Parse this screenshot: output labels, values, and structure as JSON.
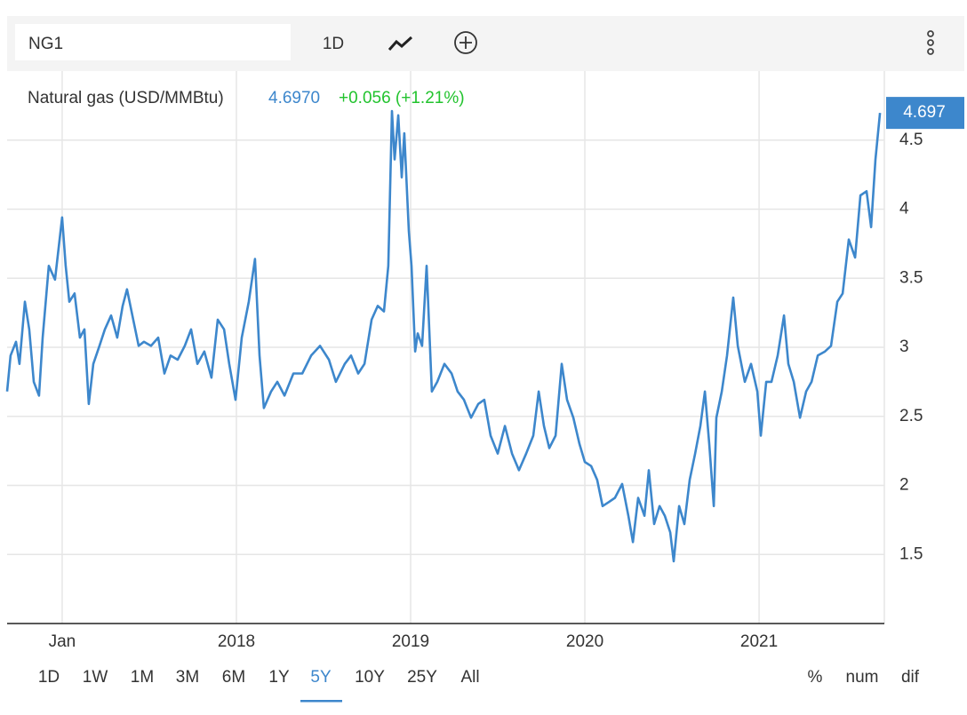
{
  "toolbar": {
    "symbol": "NG1",
    "interval": "1D"
  },
  "quote": {
    "price": "4.6970",
    "change": "+0.056 (+1.21%)"
  },
  "chart_data": {
    "type": "line",
    "x": [
      2016.684,
      2016.704,
      2016.735,
      2016.755,
      2016.786,
      2016.811,
      2016.837,
      2016.867,
      2016.888,
      2016.923,
      2016.959,
      2017.0,
      2017.02,
      2017.041,
      2017.071,
      2017.102,
      2017.128,
      2017.153,
      2017.179,
      2017.214,
      2017.245,
      2017.281,
      2017.316,
      2017.347,
      2017.372,
      2017.408,
      2017.439,
      2017.469,
      2017.51,
      2017.551,
      2017.587,
      2017.622,
      2017.663,
      2017.704,
      2017.74,
      2017.776,
      2017.816,
      2017.857,
      2017.893,
      2017.929,
      2017.959,
      2017.995,
      2018.031,
      2018.071,
      2018.107,
      2018.133,
      2018.158,
      2018.199,
      2018.235,
      2018.276,
      2018.327,
      2018.378,
      2018.429,
      2018.48,
      2018.531,
      2018.571,
      2018.622,
      2018.658,
      2018.699,
      2018.735,
      2018.776,
      2018.811,
      2018.847,
      2018.872,
      2018.893,
      2018.908,
      2018.929,
      2018.949,
      2018.964,
      2018.99,
      2019.005,
      2019.026,
      2019.041,
      2019.066,
      2019.092,
      2019.122,
      2019.153,
      2019.194,
      2019.235,
      2019.27,
      2019.306,
      2019.347,
      2019.388,
      2019.423,
      2019.459,
      2019.5,
      2019.541,
      2019.582,
      2019.622,
      2019.663,
      2019.704,
      2019.735,
      2019.765,
      2019.796,
      2019.832,
      2019.867,
      2019.898,
      2019.934,
      2019.969,
      2020.0,
      2020.036,
      2020.071,
      2020.102,
      2020.138,
      2020.173,
      2020.214,
      2020.25,
      2020.276,
      2020.306,
      2020.342,
      2020.367,
      2020.398,
      2020.429,
      2020.459,
      2020.49,
      2020.51,
      2020.541,
      2020.571,
      2020.602,
      2020.633,
      2020.663,
      2020.689,
      2020.714,
      2020.74,
      2020.755,
      2020.786,
      2020.816,
      2020.852,
      2020.878,
      2020.918,
      2020.954,
      2020.99,
      2021.01,
      2021.041,
      2021.071,
      2021.107,
      2021.143,
      2021.168,
      2021.199,
      2021.235,
      2021.27,
      2021.301,
      2021.337,
      2021.378,
      2021.413,
      2021.449,
      2021.48,
      2021.515,
      2021.551,
      2021.582,
      2021.617,
      2021.643,
      2021.668,
      2021.694
    ],
    "series": [
      {
        "name": "Natural gas (USD/MMBtu)",
        "color": "#3d87cc",
        "values": [
          2.68,
          2.94,
          3.04,
          2.88,
          3.33,
          3.13,
          2.75,
          2.65,
          3.07,
          3.59,
          3.49,
          3.94,
          3.59,
          3.33,
          3.39,
          3.07,
          3.13,
          2.59,
          2.88,
          3.01,
          3.13,
          3.23,
          3.07,
          3.3,
          3.42,
          3.2,
          3.01,
          3.04,
          3.01,
          3.07,
          2.81,
          2.94,
          2.91,
          3.01,
          3.13,
          2.88,
          2.97,
          2.78,
          3.2,
          3.13,
          2.88,
          2.62,
          3.07,
          3.33,
          3.64,
          2.94,
          2.56,
          2.68,
          2.75,
          2.65,
          2.81,
          2.81,
          2.94,
          3.01,
          2.91,
          2.75,
          2.88,
          2.94,
          2.81,
          2.88,
          3.2,
          3.3,
          3.26,
          3.59,
          4.71,
          4.36,
          4.68,
          4.23,
          4.55,
          3.84,
          3.59,
          2.97,
          3.1,
          3.01,
          3.59,
          2.68,
          2.75,
          2.88,
          2.81,
          2.68,
          2.62,
          2.49,
          2.59,
          2.62,
          2.36,
          2.23,
          2.43,
          2.23,
          2.11,
          2.23,
          2.36,
          2.68,
          2.43,
          2.27,
          2.36,
          2.88,
          2.62,
          2.49,
          2.3,
          2.17,
          2.14,
          2.04,
          1.85,
          1.88,
          1.91,
          2.01,
          1.78,
          1.59,
          1.91,
          1.78,
          2.11,
          1.72,
          1.85,
          1.78,
          1.66,
          1.45,
          1.85,
          1.72,
          2.04,
          2.23,
          2.43,
          2.68,
          2.3,
          1.85,
          2.49,
          2.68,
          2.94,
          3.36,
          3.01,
          2.75,
          2.88,
          2.68,
          2.36,
          2.75,
          2.75,
          2.94,
          3.23,
          2.88,
          2.75,
          2.49,
          2.68,
          2.75,
          2.94,
          2.97,
          3.01,
          3.33,
          3.39,
          3.78,
          3.65,
          4.1,
          4.13,
          3.87,
          4.36,
          4.697
        ]
      }
    ],
    "xlim": [
      2016.684,
      2021.719
    ],
    "xticks": [
      {
        "value": 2017,
        "label": "Jan"
      },
      2018,
      2019,
      2020,
      2021
    ],
    "ylim": [
      1,
      5
    ],
    "yticks": [
      1.5,
      2,
      2.5,
      3,
      3.5,
      4,
      4.5
    ],
    "grid": true
  },
  "range_buttons": [
    "1D",
    "1W",
    "1M",
    "3M",
    "6M",
    "1Y",
    "5Y",
    "10Y",
    "25Y",
    "All"
  ],
  "selected_range": "5Y",
  "scale_modes": [
    "%",
    "num",
    "dif"
  ]
}
